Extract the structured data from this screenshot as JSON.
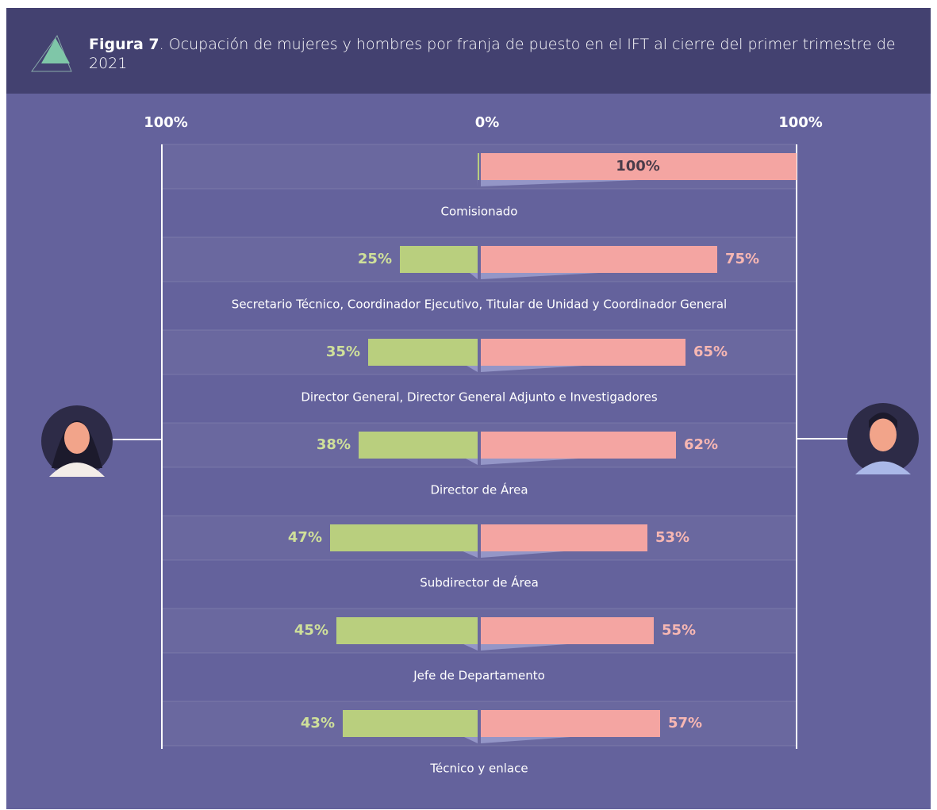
{
  "chart_data": {
    "type": "diverging-bar",
    "title_label": "Figura 7",
    "title": ". Ocupación de mujeres y hombres por franja de puesto en el IFT al cierre del primer trimestre de 2021",
    "categories": [
      "Comisionado",
      "Secretario Técnico, Coordinador Ejecutivo, Titular de Unidad y Coordinador General",
      "Director General, Director General Adjunto e Investigadores",
      "Director de Área",
      "Subdirector de Área",
      "Jefe de Departamento",
      "Técnico y enlace"
    ],
    "series": [
      {
        "color": "#b9cf7e",
        "side": "left",
        "values": [
          0,
          25,
          35,
          38,
          47,
          45,
          43
        ],
        "value_labels": [
          null,
          "25%",
          "35%",
          "38%",
          "47%",
          "45%",
          "43%"
        ]
      },
      {
        "color": "#f4a5a2",
        "side": "right",
        "values": [
          100,
          75,
          65,
          62,
          53,
          55,
          57
        ],
        "value_labels": [
          "100%",
          "75%",
          "65%",
          "62%",
          "53%",
          "55%",
          "57%"
        ]
      }
    ],
    "xlim": [
      -100,
      100
    ],
    "xticks": [
      {
        "value": -100,
        "label": "100%"
      },
      {
        "value": 0,
        "label": "0%"
      },
      {
        "value": 100,
        "label": "100%"
      }
    ]
  }
}
